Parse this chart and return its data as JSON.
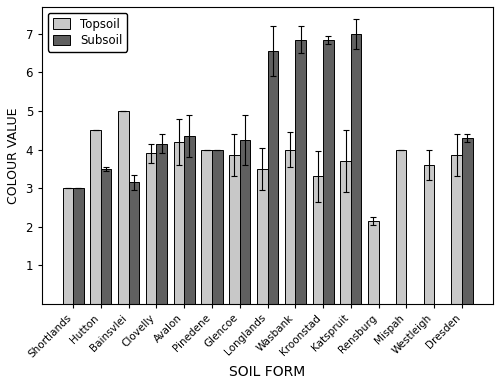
{
  "categories": [
    "Shortlands",
    "Hutton",
    "Bainsvlei",
    "Clovelly",
    "Avalon",
    "Pinedene",
    "Glencoe",
    "Longlands",
    "Wasbank",
    "Kroonstad",
    "Katspruit",
    "Rensburg",
    "Mispah",
    "Westleigh",
    "Dresden"
  ],
  "topsoil_values": [
    3.0,
    4.5,
    5.0,
    3.9,
    4.2,
    4.0,
    3.85,
    3.5,
    4.0,
    3.3,
    3.7,
    2.15,
    4.0,
    3.6,
    3.85
  ],
  "subsoil_values": [
    3.0,
    3.5,
    3.15,
    4.15,
    4.35,
    4.0,
    4.25,
    6.55,
    6.85,
    6.85,
    7.0,
    null,
    null,
    null,
    4.3
  ],
  "topsoil_errors": [
    0.0,
    0.0,
    0.0,
    0.25,
    0.6,
    0.0,
    0.55,
    0.55,
    0.45,
    0.65,
    0.8,
    0.1,
    0.0,
    0.4,
    0.55
  ],
  "subsoil_errors": [
    0.0,
    0.05,
    0.2,
    0.25,
    0.55,
    0.0,
    0.65,
    0.65,
    0.35,
    0.1,
    0.4,
    null,
    null,
    null,
    0.1
  ],
  "topsoil_color": "#c8c8c8",
  "subsoil_color": "#606060",
  "ylabel": "COLOUR VALUE",
  "xlabel": "SOIL FORM",
  "ylim": [
    0,
    7.7
  ],
  "yticks": [
    1,
    2,
    3,
    4,
    5,
    6,
    7
  ],
  "bar_width": 0.38,
  "legend_labels": [
    "Topsoil",
    "Subsoil"
  ],
  "figsize": [
    5.0,
    3.86
  ],
  "dpi": 100
}
